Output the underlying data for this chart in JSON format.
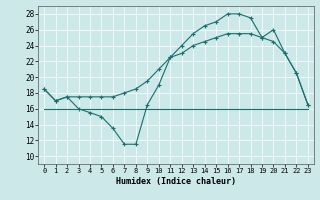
{
  "title": "",
  "xlabel": "Humidex (Indice chaleur)",
  "ylabel": "",
  "xlim": [
    -0.5,
    23.5
  ],
  "ylim": [
    9,
    29
  ],
  "yticks": [
    10,
    12,
    14,
    16,
    18,
    20,
    22,
    24,
    26,
    28
  ],
  "xticks": [
    0,
    1,
    2,
    3,
    4,
    5,
    6,
    7,
    8,
    9,
    10,
    11,
    12,
    13,
    14,
    15,
    16,
    17,
    18,
    19,
    20,
    21,
    22,
    23
  ],
  "bg_color": "#cce8e8",
  "line_color": "#1a6e6e",
  "grid_color": "#ffffff",
  "line1_y": [
    18.5,
    17,
    17.5,
    17.5,
    17.5,
    17.5,
    17.5,
    18,
    18.5,
    19.5,
    21,
    22.5,
    23,
    24,
    24.5,
    25,
    25.5,
    25.5,
    25.5,
    25,
    24.5,
    23,
    20.5,
    16.5
  ],
  "line2_y": [
    18.5,
    17,
    17.5,
    16,
    15.5,
    15,
    13.5,
    11.5,
    11.5,
    16.5,
    19,
    22.5,
    24,
    25.5,
    26.5,
    27,
    28,
    28,
    27.5,
    25,
    26,
    23,
    20.5,
    16.5
  ],
  "line3_y": [
    16,
    16,
    16,
    16,
    16,
    16,
    16,
    16,
    16,
    16,
    16,
    16,
    16,
    16,
    16,
    16,
    16,
    16,
    16,
    16,
    16,
    16,
    16,
    16
  ]
}
